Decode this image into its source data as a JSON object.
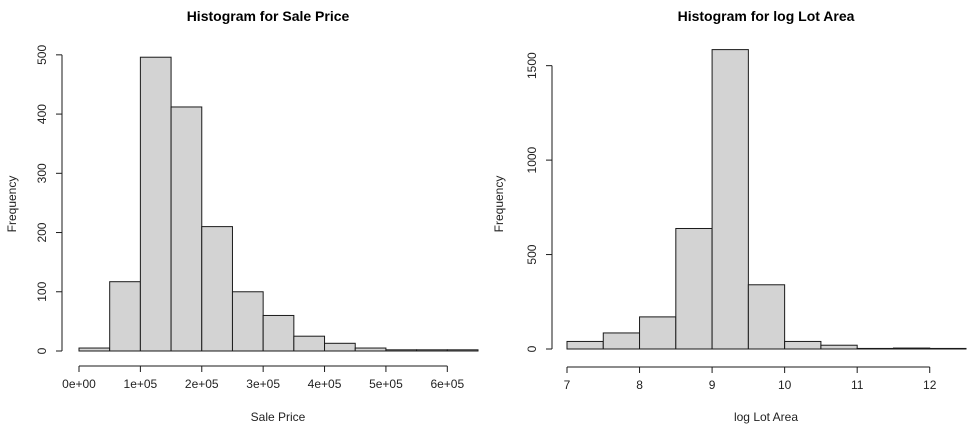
{
  "chart_data": [
    {
      "type": "bar",
      "title": "Histogram for Sale Price",
      "xlabel": "Sale Price",
      "ylabel": "Frequency",
      "bin_edges": [
        0,
        50000,
        100000,
        150000,
        200000,
        250000,
        300000,
        350000,
        400000,
        450000,
        500000,
        550000,
        600000,
        650000
      ],
      "values": [
        5,
        117,
        496,
        412,
        210,
        100,
        60,
        25,
        13,
        5,
        2,
        2,
        2
      ],
      "xlim": [
        0,
        650000
      ],
      "ylim": [
        0,
        520
      ],
      "x_ticks": [
        0,
        100000,
        200000,
        300000,
        400000,
        500000,
        600000
      ],
      "x_tick_labels": [
        "0e+00",
        "1e+05",
        "2e+05",
        "3e+05",
        "4e+05",
        "5e+05",
        "6e+05"
      ],
      "y_ticks": [
        0,
        100,
        200,
        300,
        400,
        500
      ],
      "y_tick_labels": [
        "0",
        "100",
        "200",
        "300",
        "400",
        "500"
      ]
    },
    {
      "type": "bar",
      "title": "Histogram for log Lot Area",
      "xlabel": "log Lot Area",
      "ylabel": "Frequency",
      "bin_edges": [
        7.0,
        7.5,
        8.0,
        8.5,
        9.0,
        9.5,
        10.0,
        10.5,
        11.0,
        11.5,
        12.0,
        12.5
      ],
      "values": [
        40,
        85,
        170,
        638,
        1585,
        340,
        40,
        20,
        3,
        5,
        3
      ],
      "xlim": [
        7.0,
        12.5
      ],
      "ylim": [
        0,
        1620
      ],
      "x_ticks": [
        7,
        8,
        9,
        10,
        11,
        12
      ],
      "x_tick_labels": [
        "7",
        "8",
        "9",
        "10",
        "11",
        "12"
      ],
      "y_ticks": [
        0,
        500,
        1000,
        1500
      ],
      "y_tick_labels": [
        "0",
        "500",
        "1000",
        "1500"
      ]
    }
  ]
}
